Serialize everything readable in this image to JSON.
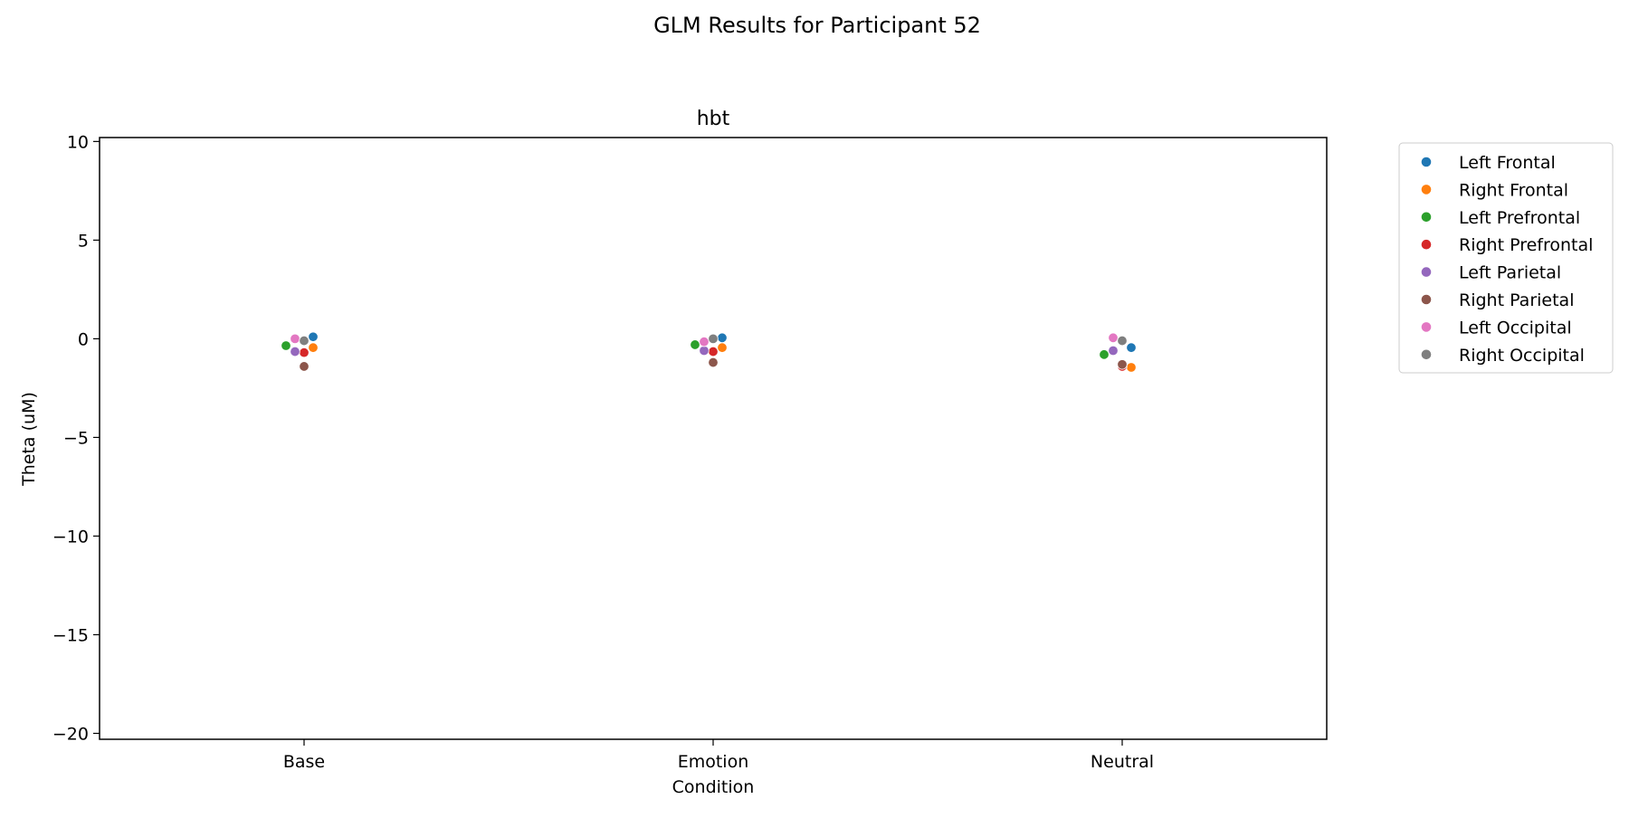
{
  "figure": {
    "suptitle": "GLM Results for Participant 52"
  },
  "chart_data": {
    "type": "scatter",
    "title": "hbt",
    "xlabel": "Condition",
    "ylabel": "Theta (uM)",
    "categories": [
      "Base",
      "Emotion",
      "Neutral"
    ],
    "ylim": [
      -20.3,
      10.2
    ],
    "yticks": [
      10,
      5,
      0,
      -5,
      -10,
      -15,
      -20
    ],
    "ytick_labels": [
      "10",
      "5",
      "0",
      "−5",
      "−10",
      "−15",
      "−20"
    ],
    "grid": false,
    "legend_position": "outside-right-top",
    "series": [
      {
        "name": "Left Frontal",
        "color": "#1f77b4",
        "values": [
          0.1,
          0.05,
          -0.45
        ]
      },
      {
        "name": "Right Frontal",
        "color": "#ff7f0e",
        "values": [
          -0.45,
          -0.45,
          -1.45
        ]
      },
      {
        "name": "Left Prefrontal",
        "color": "#2ca02c",
        "values": [
          -0.35,
          -0.3,
          -0.8
        ]
      },
      {
        "name": "Right Prefrontal",
        "color": "#d62728",
        "values": [
          -0.7,
          -0.65,
          -1.4
        ]
      },
      {
        "name": "Left Parietal",
        "color": "#9467bd",
        "values": [
          -0.65,
          -0.6,
          -0.6
        ]
      },
      {
        "name": "Right Parietal",
        "color": "#8c564b",
        "values": [
          -1.4,
          -1.2,
          -1.3
        ]
      },
      {
        "name": "Left Occipital",
        "color": "#e377c2",
        "values": [
          0.0,
          -0.15,
          0.05
        ]
      },
      {
        "name": "Right Occipital",
        "color": "#7f7f7f",
        "values": [
          -0.1,
          -0.0,
          -0.1
        ]
      }
    ]
  }
}
